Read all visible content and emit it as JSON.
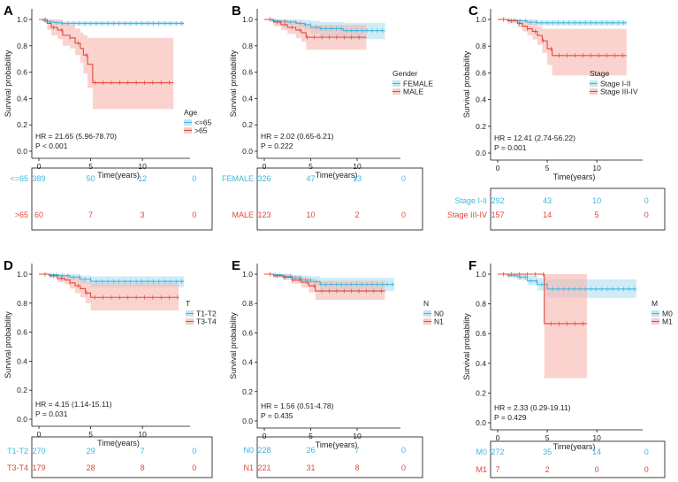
{
  "figure": {
    "background": "#ffffff"
  },
  "colors": {
    "low_group": "#3FB7DD",
    "high_group": "#E3493A",
    "low_band": "#A7DDF0",
    "high_band": "#F7B5AF",
    "axis": "#111111"
  },
  "chart_data": [
    {
      "type": "line",
      "panel": "A",
      "ylabel": "Survival probability",
      "xlabel": "Time(years)",
      "xlim": [
        -0.5,
        15
      ],
      "ylim": [
        0,
        1
      ],
      "yticks": [
        "0.0",
        "0.2",
        "0.4",
        "0.6",
        "0.8",
        "1.0"
      ],
      "xticks": [
        0,
        5,
        10
      ],
      "legend_title": "Age",
      "hr_text": "HR = 21.65 (5.96-78.70)",
      "p_text": "P < 0.001",
      "series": [
        {
          "name": "<=65",
          "x": [
            0,
            0.4,
            0.7,
            1.0,
            1.5,
            2.2,
            3.0,
            14.0
          ],
          "y": [
            1.0,
            0.99,
            0.985,
            0.98,
            0.975,
            0.97,
            0.97,
            0.97
          ],
          "ci_lower": [
            1.0,
            0.985,
            0.98,
            0.97,
            0.96,
            0.955,
            0.955,
            0.955
          ],
          "ci_upper": [
            1.0,
            1.0,
            1.0,
            0.995,
            0.99,
            0.985,
            0.985,
            0.985
          ]
        },
        {
          "name": ">65",
          "x": [
            0,
            0.8,
            1.2,
            1.8,
            2.3,
            3.0,
            3.5,
            4.0,
            4.3,
            4.7,
            5.2,
            13.0
          ],
          "y": [
            1.0,
            0.97,
            0.94,
            0.92,
            0.88,
            0.86,
            0.82,
            0.78,
            0.73,
            0.66,
            0.52,
            0.52
          ],
          "ci_lower": [
            1.0,
            0.92,
            0.88,
            0.85,
            0.8,
            0.78,
            0.73,
            0.67,
            0.59,
            0.48,
            0.32,
            0.32
          ],
          "ci_upper": [
            1.0,
            1.0,
            1.0,
            1.0,
            0.97,
            0.96,
            0.93,
            0.9,
            0.88,
            0.86,
            0.86,
            0.86
          ]
        }
      ],
      "risk_table": [
        {
          "label": "<=65",
          "counts": [
            "389",
            "50",
            "12",
            "0"
          ]
        },
        {
          "label": ">65",
          "counts": [
            "60",
            "7",
            "3",
            "0"
          ]
        }
      ]
    },
    {
      "type": "line",
      "panel": "B",
      "ylabel": "Survival probability",
      "xlabel": "Time(years)",
      "xlim": [
        -0.5,
        15
      ],
      "ylim": [
        0,
        1
      ],
      "yticks": [
        "0.0",
        "0.2",
        "0.4",
        "0.6",
        "0.8",
        "1.0"
      ],
      "xticks": [
        0,
        5,
        10
      ],
      "legend_title": "Gender",
      "hr_text": "HR = 2.02 (0.65-6.21)",
      "p_text": "P = 0.222",
      "series": [
        {
          "name": "FEMALE",
          "x": [
            0,
            0.8,
            1.5,
            2.5,
            3.5,
            4.3,
            5.0,
            6.0,
            8.5,
            13.0
          ],
          "y": [
            1.0,
            0.99,
            0.985,
            0.98,
            0.97,
            0.96,
            0.94,
            0.93,
            0.915,
            0.915
          ],
          "ci_lower": [
            1.0,
            0.98,
            0.97,
            0.96,
            0.94,
            0.92,
            0.89,
            0.87,
            0.85,
            0.85
          ],
          "ci_upper": [
            1.0,
            1.0,
            1.0,
            1.0,
            1.0,
            0.995,
            0.99,
            0.98,
            0.975,
            0.975
          ]
        },
        {
          "name": "MALE",
          "x": [
            0,
            1.0,
            1.8,
            2.5,
            3.4,
            4.0,
            4.5,
            11.0
          ],
          "y": [
            1.0,
            0.98,
            0.96,
            0.94,
            0.92,
            0.9,
            0.865,
            0.865
          ],
          "ci_lower": [
            1.0,
            0.95,
            0.92,
            0.89,
            0.86,
            0.83,
            0.77,
            0.77
          ],
          "ci_upper": [
            1.0,
            1.0,
            1.0,
            0.99,
            0.98,
            0.97,
            0.96,
            0.96
          ]
        }
      ],
      "risk_table": [
        {
          "label": "FEMALE",
          "counts": [
            "326",
            "47",
            "13",
            "0"
          ]
        },
        {
          "label": "MALE",
          "counts": [
            "123",
            "10",
            "2",
            "0"
          ]
        }
      ]
    },
    {
      "type": "line",
      "panel": "C",
      "ylabel": "Survival probability",
      "xlabel": "Time(years)",
      "xlim": [
        -0.5,
        15
      ],
      "ylim": [
        0,
        1
      ],
      "yticks": [
        "0.0",
        "0.2",
        "0.4",
        "0.6",
        "0.8",
        "1.0"
      ],
      "xticks": [
        0,
        5,
        10
      ],
      "legend_title": "Stage",
      "hr_text": "HR = 12.41 (2.74-56.22)",
      "p_text": "P = 0.001",
      "series": [
        {
          "name": "Stage I-II",
          "x": [
            0,
            1.0,
            2.0,
            3.0,
            4.0,
            13.0
          ],
          "y": [
            1.0,
            0.995,
            0.99,
            0.98,
            0.975,
            0.975
          ],
          "ci_lower": [
            1.0,
            0.985,
            0.975,
            0.96,
            0.955,
            0.955
          ],
          "ci_upper": [
            1.0,
            1.0,
            1.0,
            1.0,
            0.995,
            0.995
          ]
        },
        {
          "name": "Stage III-IV",
          "x": [
            0,
            1.0,
            2.0,
            2.5,
            3.0,
            3.5,
            4.0,
            4.5,
            5.0,
            5.5,
            13.0
          ],
          "y": [
            1.0,
            0.99,
            0.97,
            0.95,
            0.93,
            0.91,
            0.88,
            0.84,
            0.78,
            0.73,
            0.73
          ],
          "ci_lower": [
            1.0,
            0.97,
            0.94,
            0.91,
            0.88,
            0.85,
            0.81,
            0.75,
            0.66,
            0.58,
            0.58
          ],
          "ci_upper": [
            1.0,
            1.0,
            1.0,
            0.99,
            0.98,
            0.97,
            0.95,
            0.93,
            0.93,
            0.93,
            0.93
          ]
        }
      ],
      "risk_table": [
        {
          "label": "Stage I-II",
          "counts": [
            "292",
            "43",
            "10",
            "0"
          ]
        },
        {
          "label": "Stage III-IV",
          "counts": [
            "157",
            "14",
            "5",
            "0"
          ]
        }
      ]
    },
    {
      "type": "line",
      "panel": "D",
      "ylabel": "Survival probability",
      "xlabel": "Time(years)",
      "xlim": [
        -0.5,
        15
      ],
      "ylim": [
        0,
        1
      ],
      "yticks": [
        "0.0",
        "0.2",
        "0.4",
        "0.6",
        "0.8",
        "1.0"
      ],
      "xticks": [
        0,
        5,
        10
      ],
      "legend_title": "T",
      "hr_text": "HR = 4.15 (1.14-15.11)",
      "p_text": "P = 0.031",
      "series": [
        {
          "name": "T1-T2",
          "x": [
            0,
            1.0,
            2.0,
            3.0,
            4.0,
            5.0,
            14.0
          ],
          "y": [
            1.0,
            0.995,
            0.99,
            0.98,
            0.965,
            0.95,
            0.95
          ],
          "ci_lower": [
            1.0,
            0.985,
            0.97,
            0.955,
            0.935,
            0.91,
            0.91
          ],
          "ci_upper": [
            1.0,
            1.0,
            1.0,
            1.0,
            0.99,
            0.985,
            0.985
          ]
        },
        {
          "name": "T3-T4",
          "x": [
            0,
            1.0,
            1.8,
            2.5,
            3.0,
            3.5,
            4.0,
            4.5,
            5.0,
            13.5
          ],
          "y": [
            1.0,
            0.99,
            0.97,
            0.96,
            0.94,
            0.92,
            0.9,
            0.87,
            0.84,
            0.84
          ],
          "ci_lower": [
            1.0,
            0.975,
            0.945,
            0.93,
            0.9,
            0.87,
            0.84,
            0.8,
            0.75,
            0.75
          ],
          "ci_upper": [
            1.0,
            1.0,
            0.995,
            0.99,
            0.98,
            0.97,
            0.96,
            0.95,
            0.94,
            0.94
          ]
        }
      ],
      "risk_table": [
        {
          "label": "T1-T2",
          "counts": [
            "270",
            "29",
            "7",
            "0"
          ]
        },
        {
          "label": "T3-T4",
          "counts": [
            "179",
            "28",
            "8",
            "0"
          ]
        }
      ]
    },
    {
      "type": "line",
      "panel": "E",
      "ylabel": "Survival probability",
      "xlabel": "Time(years)",
      "xlim": [
        -0.5,
        15
      ],
      "ylim": [
        0,
        1
      ],
      "yticks": [
        "0.0",
        "0.2",
        "0.4",
        "0.6",
        "0.8",
        "1.0"
      ],
      "xticks": [
        0,
        5,
        10
      ],
      "legend_title": "N",
      "hr_text": "HR = 1.56 (0.51-4.78)",
      "p_text": "P = 0.435",
      "series": [
        {
          "name": "N0",
          "x": [
            0,
            1.0,
            2.0,
            3.0,
            4.0,
            5.0,
            6.0,
            14.0
          ],
          "y": [
            1.0,
            0.995,
            0.985,
            0.975,
            0.96,
            0.95,
            0.93,
            0.93
          ],
          "ci_lower": [
            1.0,
            0.985,
            0.97,
            0.955,
            0.935,
            0.92,
            0.885,
            0.885
          ],
          "ci_upper": [
            1.0,
            1.0,
            1.0,
            0.995,
            0.99,
            0.985,
            0.975,
            0.975
          ]
        },
        {
          "name": "N1",
          "x": [
            0,
            1.0,
            2.0,
            3.0,
            4.0,
            4.8,
            5.5,
            13.0
          ],
          "y": [
            1.0,
            0.99,
            0.98,
            0.96,
            0.945,
            0.92,
            0.885,
            0.885
          ],
          "ci_lower": [
            1.0,
            0.975,
            0.96,
            0.935,
            0.91,
            0.875,
            0.825,
            0.825
          ],
          "ci_upper": [
            1.0,
            1.0,
            1.0,
            0.99,
            0.98,
            0.97,
            0.955,
            0.955
          ]
        }
      ],
      "risk_table": [
        {
          "label": "N0",
          "counts": [
            "228",
            "26",
            "7",
            "0"
          ]
        },
        {
          "label": "N1",
          "counts": [
            "221",
            "31",
            "8",
            "0"
          ]
        }
      ]
    },
    {
      "type": "line",
      "panel": "F",
      "ylabel": "Survival probability",
      "xlabel": "Time(years)",
      "xlim": [
        -0.5,
        15
      ],
      "ylim": [
        0,
        1
      ],
      "yticks": [
        "0.0",
        "0.2",
        "0.4",
        "0.6",
        "0.8",
        "1.0"
      ],
      "xticks": [
        0,
        5,
        10
      ],
      "legend_title": "M",
      "hr_text": "HR = 2.33 (0.29-19.11)",
      "p_text": "P = 0.429",
      "series": [
        {
          "name": "M0",
          "x": [
            0,
            1.0,
            2.0,
            3.0,
            4.0,
            5.0,
            14.0
          ],
          "y": [
            1.0,
            0.99,
            0.98,
            0.955,
            0.93,
            0.9,
            0.9
          ],
          "ci_lower": [
            1.0,
            0.98,
            0.96,
            0.925,
            0.89,
            0.84,
            0.84
          ],
          "ci_upper": [
            1.0,
            1.0,
            1.0,
            0.99,
            0.975,
            0.965,
            0.965
          ]
        },
        {
          "name": "M1",
          "x": [
            0,
            4.7,
            9.0
          ],
          "y": [
            1.0,
            0.667,
            0.667
          ],
          "ci_lower": [
            1.0,
            0.3,
            0.3
          ],
          "ci_upper": [
            1.0,
            1.0,
            1.0
          ]
        }
      ],
      "risk_table": [
        {
          "label": "M0",
          "counts": [
            "272",
            "35",
            "14",
            "0"
          ]
        },
        {
          "label": "M1",
          "counts": [
            "7",
            "2",
            "0",
            "0"
          ]
        }
      ]
    }
  ]
}
